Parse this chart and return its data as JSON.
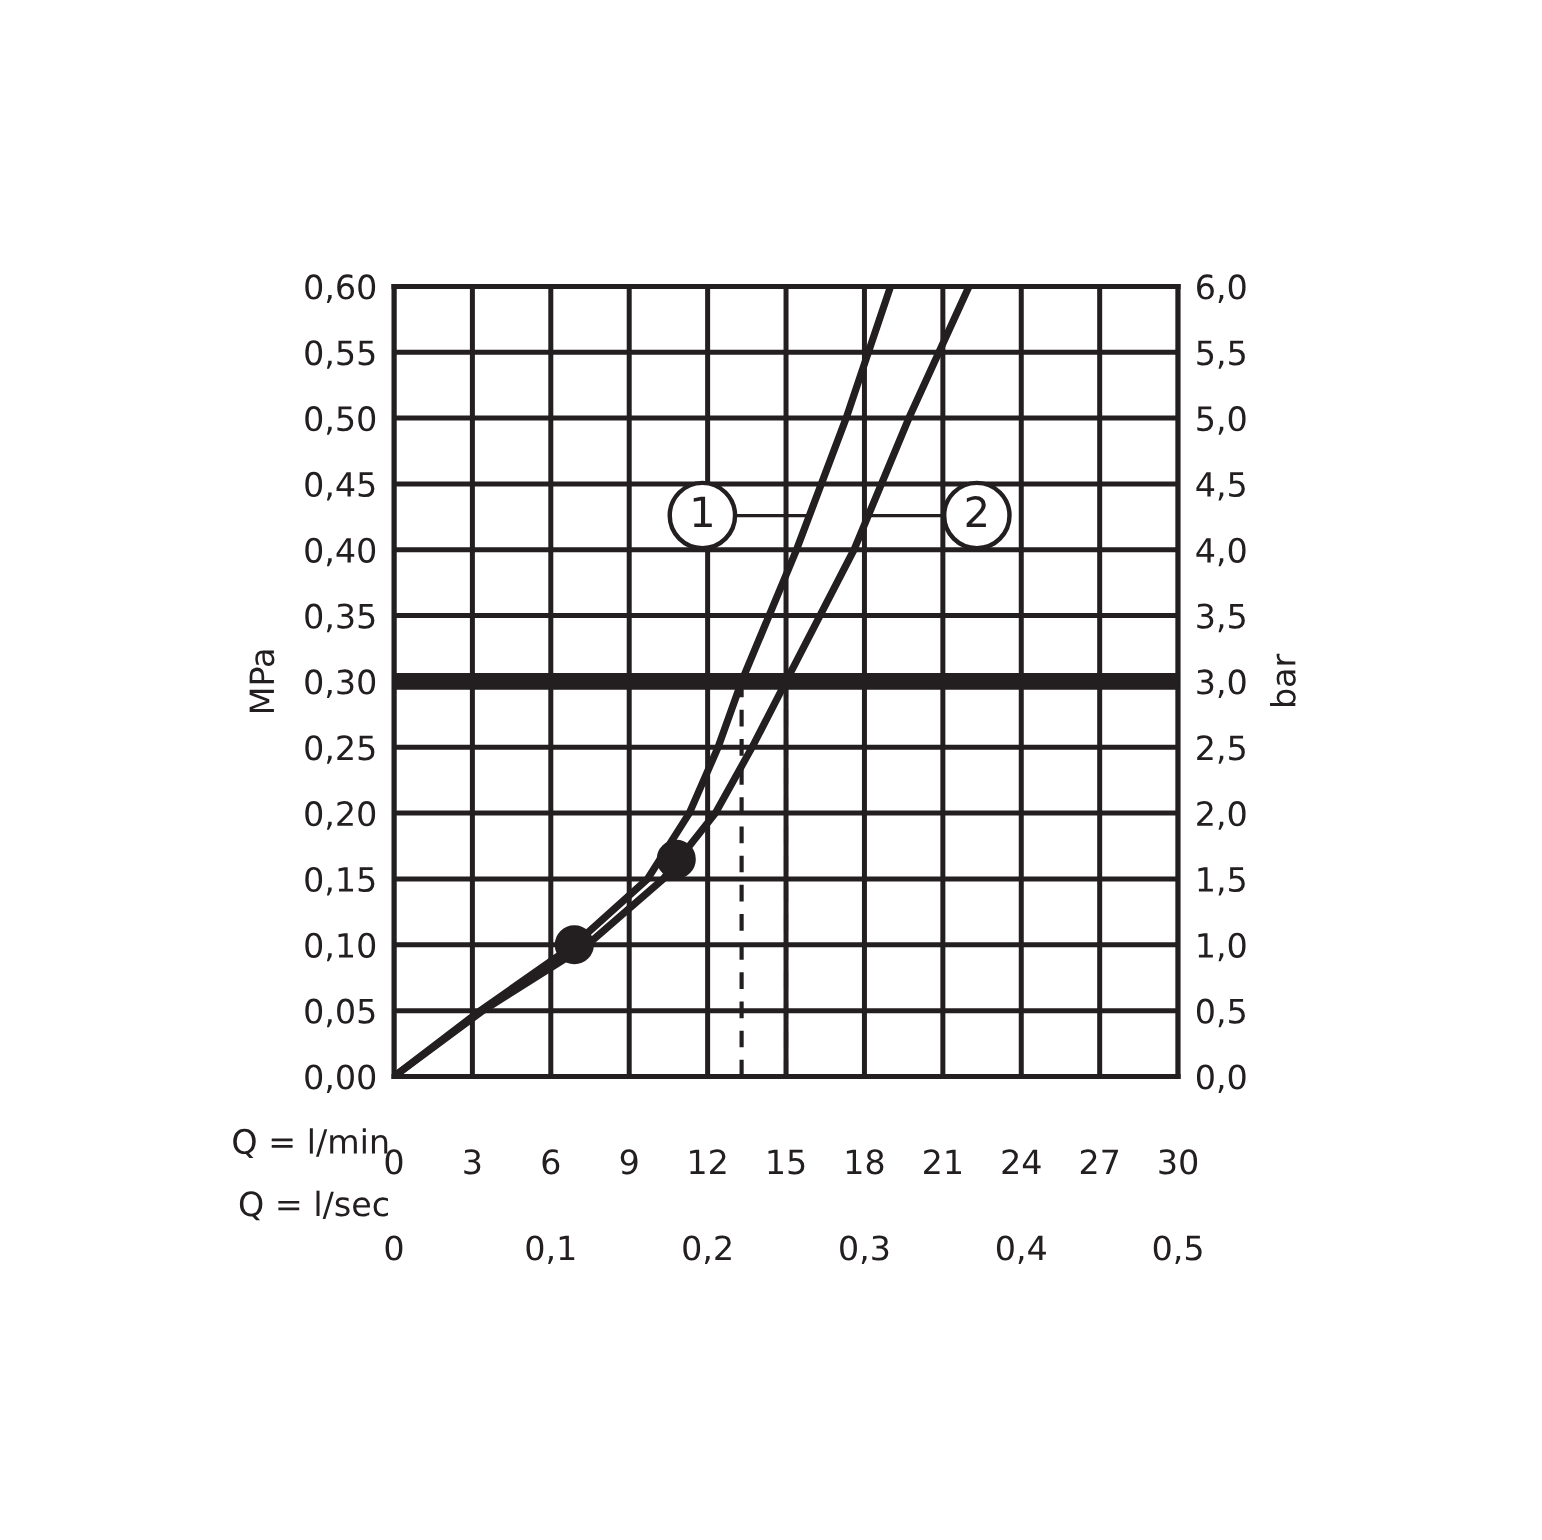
{
  "chart_data": {
    "type": "line",
    "xlabel": "Q = l/min",
    "x2label": "Q = l/sec",
    "ylabel": "MPa",
    "y2label": "bar",
    "series": [
      {
        "x": [
          0,
          3.3,
          6.9,
          9.7,
          11.3,
          12.4,
          13.3,
          15.4,
          17.3,
          19.0
        ],
        "values": [
          0,
          0.05,
          0.1,
          0.15,
          0.2,
          0.25,
          0.3,
          0.4,
          0.5,
          0.6
        ],
        "color": "#231f20"
      },
      {
        "x": [
          0,
          3.4,
          7.4,
          10.3,
          12.3,
          13.7,
          15.0,
          17.6,
          19.7,
          22.0
        ],
        "values": [
          0,
          0.05,
          0.1,
          0.15,
          0.2,
          0.25,
          0.3,
          0.4,
          0.5,
          0.6
        ],
        "color": "#231f20"
      },
      {
        "type": "scatter",
        "x": [
          6.9,
          10.8
        ],
        "values": [
          0.1,
          0.165
        ],
        "color": "#231f20",
        "marker": "circle"
      }
    ],
    "annotations": [
      {
        "text": "1",
        "x": 11.8,
        "y": 0.426
      },
      {
        "text": "2",
        "x": 22.3,
        "y": 0.426
      }
    ],
    "ref_lines": [
      {
        "axis": "y",
        "value": 0.3,
        "color": "#231f20",
        "line_style": "solid"
      },
      {
        "axis": "x",
        "value": 13.3,
        "color": "#231f20",
        "line_style": "dashed"
      },
      {
        "axis": "x",
        "value": 15.0,
        "color": "#231f20",
        "line_style": "dashed"
      }
    ],
    "xlim": [
      0,
      30
    ],
    "xticks": [
      0,
      3,
      6,
      9,
      12,
      15,
      18,
      21,
      24,
      27,
      30
    ],
    "ylim": [
      0,
      0.6
    ],
    "yticks": [
      {
        "value": 0,
        "label": "0,00"
      },
      {
        "value": 0.05,
        "label": "0,05"
      },
      {
        "value": 0.1,
        "label": "0,10"
      },
      {
        "value": 0.15,
        "label": "0,15"
      },
      {
        "value": 0.2,
        "label": "0,20"
      },
      {
        "value": 0.25,
        "label": "0,25"
      },
      {
        "value": 0.3,
        "label": "0,30"
      },
      {
        "value": 0.35,
        "label": "0,35"
      },
      {
        "value": 0.4,
        "label": "0,40"
      },
      {
        "value": 0.45,
        "label": "0,45"
      },
      {
        "value": 0.5,
        "label": "0,50"
      },
      {
        "value": 0.55,
        "label": "0,55"
      },
      {
        "value": 0.6,
        "label": "0,60"
      }
    ],
    "y2lim": [
      0,
      6
    ],
    "y2ticks": [
      {
        "value": 0,
        "label": "0,0"
      },
      {
        "value": 0.5,
        "label": "0,5"
      },
      {
        "value": 1,
        "label": "1,0"
      },
      {
        "value": 1.5,
        "label": "1,5"
      },
      {
        "value": 2,
        "label": "2,0"
      },
      {
        "value": 2.5,
        "label": "2,5"
      },
      {
        "value": 3,
        "label": "3,0"
      },
      {
        "value": 3.5,
        "label": "3,5"
      },
      {
        "value": 4,
        "label": "4,0"
      },
      {
        "value": 4.5,
        "label": "4,5"
      },
      {
        "value": 5,
        "label": "5,0"
      },
      {
        "value": 5.5,
        "label": "5,5"
      },
      {
        "value": 6,
        "label": "6,0"
      }
    ],
    "x2lim": [
      0,
      0.5
    ],
    "x2ticks": [
      0,
      {
        "value": 0.1,
        "label": "0,1"
      },
      {
        "value": 0.2,
        "label": "0,2"
      },
      {
        "value": 0.3,
        "label": "0,3"
      },
      {
        "value": 0.4,
        "label": "0,4"
      },
      {
        "value": 0.5,
        "label": "0,5"
      }
    ],
    "grid": true,
    "line_style": "solid"
  }
}
